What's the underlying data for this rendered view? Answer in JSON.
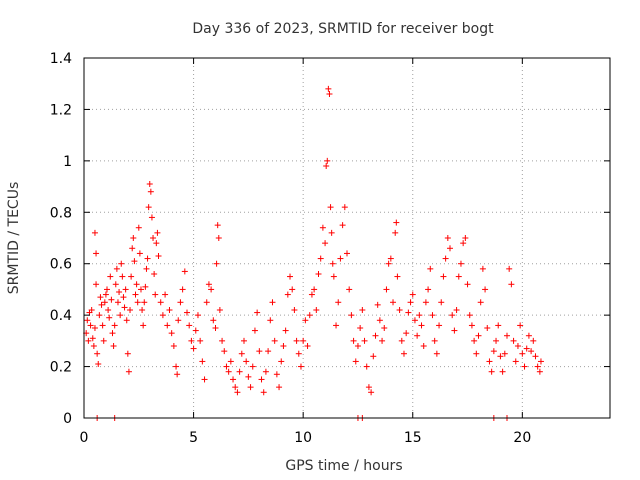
{
  "chart_data": {
    "type": "scatter",
    "title": "Day 336 of 2023, SRMTID for receiver bogt",
    "xlabel": "GPS time / hours",
    "ylabel": "SRMTID / TECUs",
    "xlim": [
      0,
      24
    ],
    "ylim": [
      0,
      1.4
    ],
    "xticks": [
      0,
      5,
      10,
      15,
      20
    ],
    "xtick_labels": [
      "0",
      "5",
      "10",
      "15",
      "20"
    ],
    "yticks": [
      0,
      0.2,
      0.4,
      0.6,
      0.8,
      1.0,
      1.2,
      1.4
    ],
    "ytick_labels": [
      "0",
      "0.2",
      "0.4",
      "0.6",
      "0.8",
      "1",
      "1.2",
      "1.4"
    ],
    "grid": true,
    "marker": "+",
    "color": "#ff0000",
    "series": [
      {
        "name": "SRMTID",
        "points": [
          [
            0.1,
            0.33
          ],
          [
            0.15,
            0.38
          ],
          [
            0.2,
            0.3
          ],
          [
            0.25,
            0.41
          ],
          [
            0.3,
            0.36
          ],
          [
            0.35,
            0.42
          ],
          [
            0.4,
            0.31
          ],
          [
            0.45,
            0.28
          ],
          [
            0.5,
            0.35
          ],
          [
            0.55,
            0.52
          ],
          [
            0.5,
            0.72
          ],
          [
            0.55,
            0.64
          ],
          [
            0.6,
            0.25
          ],
          [
            0.65,
            0.21
          ],
          [
            0.7,
            0.4
          ],
          [
            0.75,
            0.47
          ],
          [
            0.8,
            0.44
          ],
          [
            0.85,
            0.36
          ],
          [
            0.9,
            0.3
          ],
          [
            0.95,
            0.45
          ],
          [
            1.0,
            0.48
          ],
          [
            1.05,
            0.5
          ],
          [
            1.1,
            0.42
          ],
          [
            1.15,
            0.39
          ],
          [
            1.2,
            0.55
          ],
          [
            1.25,
            0.46
          ],
          [
            1.3,
            0.33
          ],
          [
            1.35,
            0.28
          ],
          [
            1.4,
            0.36
          ],
          [
            1.45,
            0.52
          ],
          [
            1.5,
            0.58
          ],
          [
            1.55,
            0.45
          ],
          [
            1.6,
            0.49
          ],
          [
            1.65,
            0.4
          ],
          [
            1.7,
            0.6
          ],
          [
            1.75,
            0.55
          ],
          [
            1.8,
            0.47
          ],
          [
            1.85,
            0.43
          ],
          [
            1.9,
            0.5
          ],
          [
            1.95,
            0.38
          ],
          [
            2.0,
            0.25
          ],
          [
            2.05,
            0.18
          ],
          [
            2.1,
            0.42
          ],
          [
            2.15,
            0.55
          ],
          [
            2.2,
            0.66
          ],
          [
            2.25,
            0.7
          ],
          [
            2.3,
            0.61
          ],
          [
            2.35,
            0.48
          ],
          [
            2.4,
            0.52
          ],
          [
            2.45,
            0.45
          ],
          [
            2.5,
            0.74
          ],
          [
            2.55,
            0.64
          ],
          [
            2.6,
            0.5
          ],
          [
            2.65,
            0.42
          ],
          [
            2.7,
            0.36
          ],
          [
            2.75,
            0.45
          ],
          [
            2.8,
            0.51
          ],
          [
            2.85,
            0.58
          ],
          [
            2.9,
            0.62
          ],
          [
            2.95,
            0.82
          ],
          [
            3.0,
            0.91
          ],
          [
            3.05,
            0.88
          ],
          [
            3.1,
            0.78
          ],
          [
            3.15,
            0.7
          ],
          [
            3.2,
            0.56
          ],
          [
            3.25,
            0.48
          ],
          [
            3.3,
            0.68
          ],
          [
            3.35,
            0.72
          ],
          [
            3.4,
            0.63
          ],
          [
            3.5,
            0.45
          ],
          [
            3.6,
            0.4
          ],
          [
            3.7,
            0.48
          ],
          [
            3.8,
            0.36
          ],
          [
            3.9,
            0.42
          ],
          [
            4.0,
            0.33
          ],
          [
            4.1,
            0.28
          ],
          [
            4.2,
            0.2
          ],
          [
            4.25,
            0.17
          ],
          [
            4.3,
            0.38
          ],
          [
            4.4,
            0.45
          ],
          [
            4.5,
            0.5
          ],
          [
            4.6,
            0.57
          ],
          [
            4.7,
            0.41
          ],
          [
            4.8,
            0.36
          ],
          [
            4.9,
            0.3
          ],
          [
            5.0,
            0.27
          ],
          [
            5.1,
            0.34
          ],
          [
            5.2,
            0.4
          ],
          [
            5.3,
            0.3
          ],
          [
            5.4,
            0.22
          ],
          [
            5.5,
            0.15
          ],
          [
            5.6,
            0.45
          ],
          [
            5.7,
            0.52
          ],
          [
            5.8,
            0.5
          ],
          [
            5.9,
            0.38
          ],
          [
            6.0,
            0.35
          ],
          [
            6.05,
            0.6
          ],
          [
            6.1,
            0.75
          ],
          [
            6.15,
            0.7
          ],
          [
            6.2,
            0.42
          ],
          [
            6.3,
            0.3
          ],
          [
            6.4,
            0.26
          ],
          [
            6.5,
            0.2
          ],
          [
            6.6,
            0.18
          ],
          [
            6.7,
            0.22
          ],
          [
            6.8,
            0.15
          ],
          [
            6.9,
            0.12
          ],
          [
            7.0,
            0.1
          ],
          [
            7.1,
            0.18
          ],
          [
            7.2,
            0.25
          ],
          [
            7.3,
            0.3
          ],
          [
            7.4,
            0.22
          ],
          [
            7.5,
            0.16
          ],
          [
            7.6,
            0.12
          ],
          [
            7.7,
            0.2
          ],
          [
            7.8,
            0.34
          ],
          [
            7.9,
            0.41
          ],
          [
            8.0,
            0.26
          ],
          [
            8.1,
            0.15
          ],
          [
            8.2,
            0.1
          ],
          [
            8.3,
            0.18
          ],
          [
            8.4,
            0.26
          ],
          [
            8.5,
            0.38
          ],
          [
            8.6,
            0.45
          ],
          [
            8.7,
            0.3
          ],
          [
            8.8,
            0.17
          ],
          [
            8.9,
            0.12
          ],
          [
            9.0,
            0.22
          ],
          [
            9.1,
            0.28
          ],
          [
            9.2,
            0.34
          ],
          [
            9.3,
            0.48
          ],
          [
            9.4,
            0.55
          ],
          [
            9.5,
            0.5
          ],
          [
            9.6,
            0.42
          ],
          [
            9.7,
            0.3
          ],
          [
            9.8,
            0.25
          ],
          [
            9.9,
            0.2
          ],
          [
            10.0,
            0.3
          ],
          [
            10.1,
            0.38
          ],
          [
            10.2,
            0.28
          ],
          [
            10.3,
            0.4
          ],
          [
            10.4,
            0.48
          ],
          [
            10.5,
            0.5
          ],
          [
            10.6,
            0.42
          ],
          [
            10.7,
            0.56
          ],
          [
            10.8,
            0.62
          ],
          [
            10.9,
            0.74
          ],
          [
            11.0,
            0.68
          ],
          [
            11.05,
            0.98
          ],
          [
            11.1,
            1.0
          ],
          [
            11.15,
            1.28
          ],
          [
            11.2,
            1.26
          ],
          [
            11.25,
            0.82
          ],
          [
            11.3,
            0.72
          ],
          [
            11.35,
            0.6
          ],
          [
            11.4,
            0.55
          ],
          [
            11.5,
            0.36
          ],
          [
            11.6,
            0.45
          ],
          [
            11.7,
            0.62
          ],
          [
            11.8,
            0.75
          ],
          [
            11.9,
            0.82
          ],
          [
            12.0,
            0.64
          ],
          [
            12.1,
            0.5
          ],
          [
            12.2,
            0.4
          ],
          [
            12.3,
            0.3
          ],
          [
            12.4,
            0.22
          ],
          [
            12.5,
            0.28
          ],
          [
            12.6,
            0.35
          ],
          [
            12.7,
            0.42
          ],
          [
            12.8,
            0.3
          ],
          [
            12.9,
            0.2
          ],
          [
            13.0,
            0.12
          ],
          [
            13.1,
            0.1
          ],
          [
            13.2,
            0.24
          ],
          [
            13.3,
            0.32
          ],
          [
            13.4,
            0.44
          ],
          [
            13.5,
            0.38
          ],
          [
            13.6,
            0.3
          ],
          [
            13.7,
            0.35
          ],
          [
            13.8,
            0.5
          ],
          [
            13.9,
            0.6
          ],
          [
            14.0,
            0.62
          ],
          [
            14.1,
            0.45
          ],
          [
            14.2,
            0.72
          ],
          [
            14.25,
            0.76
          ],
          [
            14.3,
            0.55
          ],
          [
            14.4,
            0.42
          ],
          [
            14.5,
            0.3
          ],
          [
            14.6,
            0.25
          ],
          [
            14.7,
            0.33
          ],
          [
            14.8,
            0.41
          ],
          [
            14.9,
            0.45
          ],
          [
            15.0,
            0.48
          ],
          [
            15.1,
            0.38
          ],
          [
            15.2,
            0.32
          ],
          [
            15.3,
            0.4
          ],
          [
            15.4,
            0.36
          ],
          [
            15.5,
            0.28
          ],
          [
            15.6,
            0.45
          ],
          [
            15.7,
            0.5
          ],
          [
            15.8,
            0.58
          ],
          [
            15.9,
            0.4
          ],
          [
            16.0,
            0.3
          ],
          [
            16.1,
            0.25
          ],
          [
            16.2,
            0.36
          ],
          [
            16.3,
            0.45
          ],
          [
            16.4,
            0.55
          ],
          [
            16.5,
            0.62
          ],
          [
            16.6,
            0.7
          ],
          [
            16.7,
            0.66
          ],
          [
            16.8,
            0.4
          ],
          [
            16.9,
            0.34
          ],
          [
            17.0,
            0.42
          ],
          [
            17.1,
            0.55
          ],
          [
            17.2,
            0.6
          ],
          [
            17.3,
            0.68
          ],
          [
            17.4,
            0.7
          ],
          [
            17.5,
            0.52
          ],
          [
            17.6,
            0.4
          ],
          [
            17.7,
            0.36
          ],
          [
            17.8,
            0.3
          ],
          [
            17.9,
            0.25
          ],
          [
            18.0,
            0.32
          ],
          [
            18.1,
            0.45
          ],
          [
            18.2,
            0.58
          ],
          [
            18.3,
            0.5
          ],
          [
            18.4,
            0.35
          ],
          [
            18.5,
            0.22
          ],
          [
            18.6,
            0.18
          ],
          [
            18.7,
            0.26
          ],
          [
            18.8,
            0.3
          ],
          [
            18.9,
            0.36
          ],
          [
            19.0,
            0.24
          ],
          [
            19.1,
            0.18
          ],
          [
            19.2,
            0.25
          ],
          [
            19.3,
            0.32
          ],
          [
            19.4,
            0.58
          ],
          [
            19.5,
            0.52
          ],
          [
            19.6,
            0.3
          ],
          [
            19.7,
            0.22
          ],
          [
            19.8,
            0.28
          ],
          [
            19.9,
            0.36
          ],
          [
            20.0,
            0.25
          ],
          [
            20.1,
            0.2
          ],
          [
            20.2,
            0.27
          ],
          [
            20.3,
            0.32
          ],
          [
            20.4,
            0.26
          ],
          [
            20.5,
            0.3
          ],
          [
            20.6,
            0.24
          ],
          [
            20.7,
            0.2
          ],
          [
            20.8,
            0.18
          ],
          [
            20.85,
            0.22
          ],
          [
            0.6,
            0.0
          ],
          [
            1.4,
            0.0
          ],
          [
            12.5,
            0.0
          ],
          [
            12.7,
            0.0
          ],
          [
            18.7,
            0.0
          ],
          [
            19.3,
            0.0
          ]
        ]
      }
    ]
  }
}
